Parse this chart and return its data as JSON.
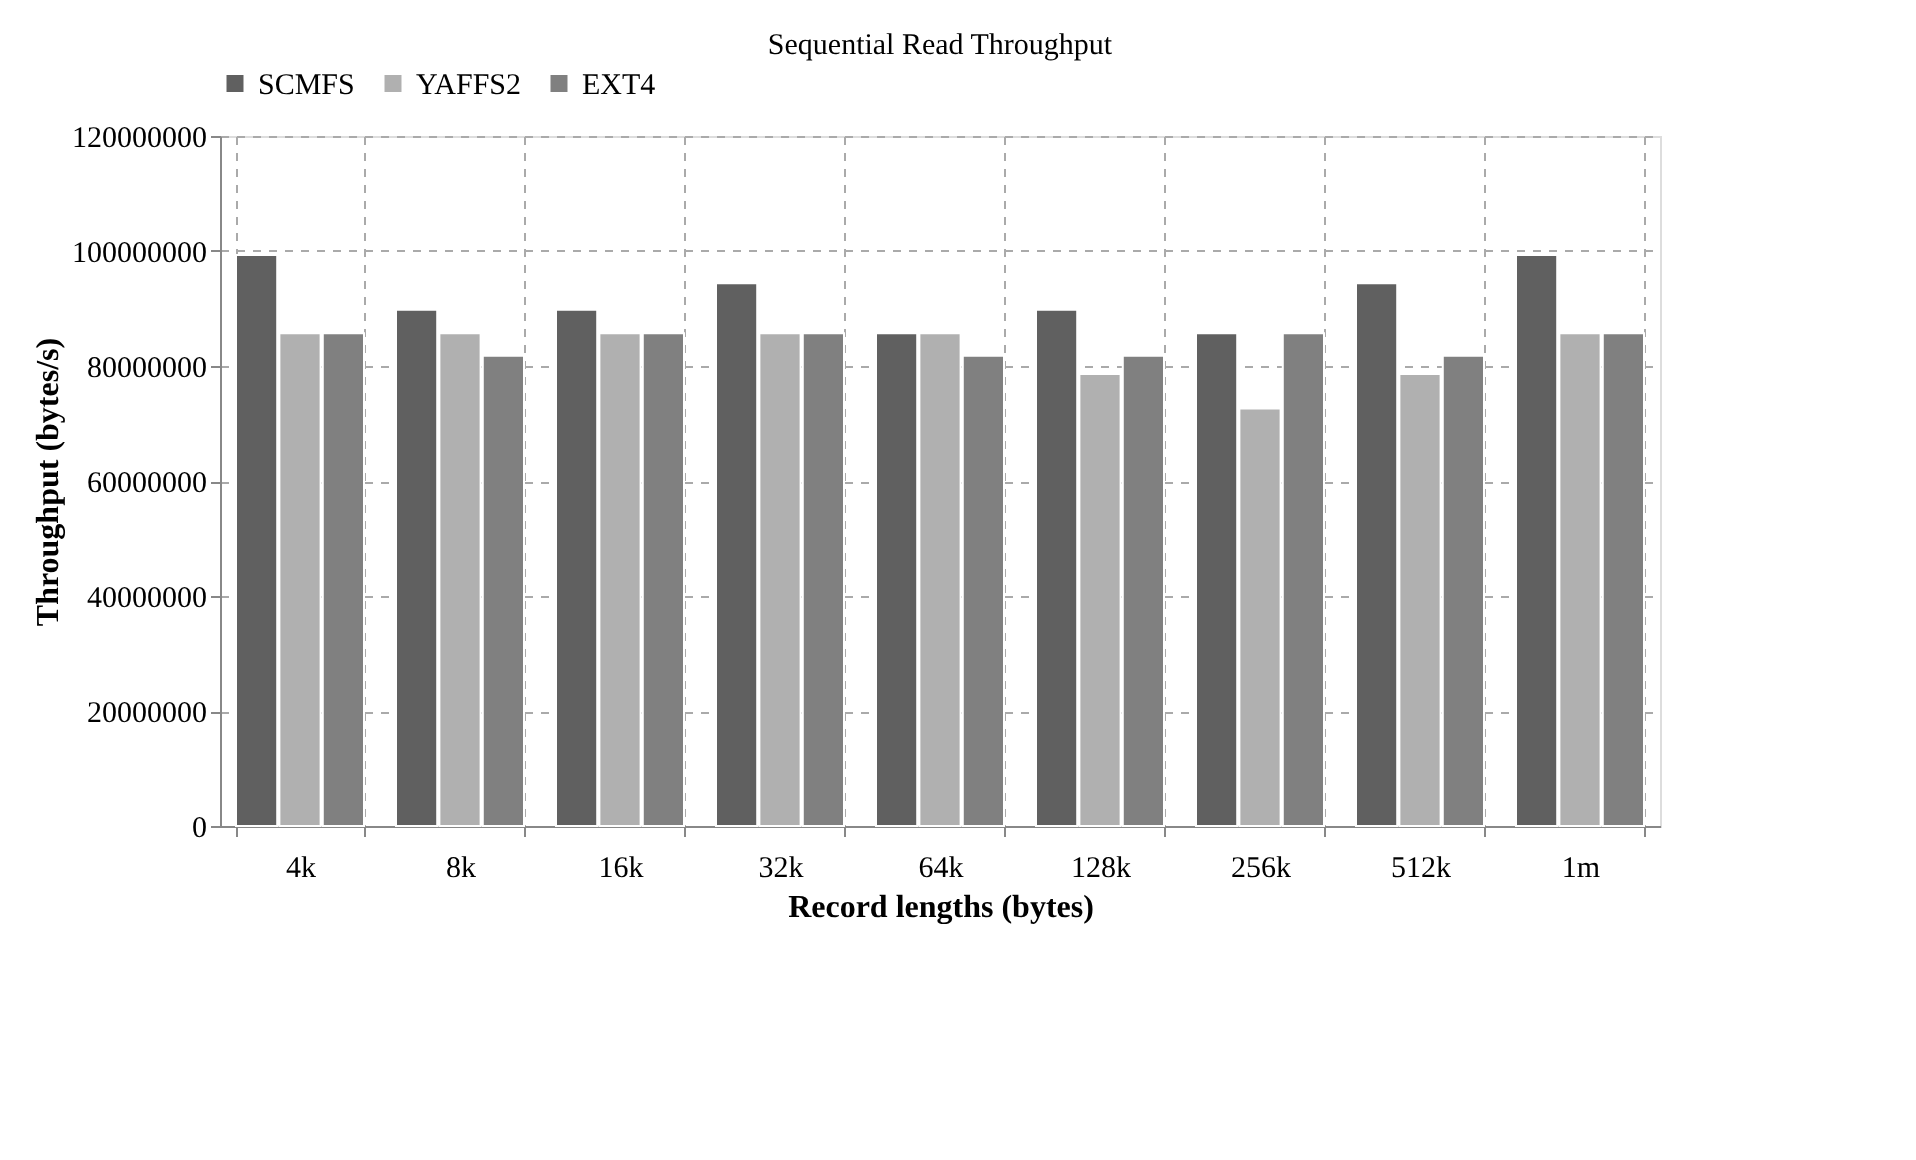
{
  "chart_data": {
    "type": "bar",
    "title": "Sequential Read Throughput",
    "xlabel": "Record lengths (bytes)",
    "ylabel": "Throughput (bytes/s)",
    "categories": [
      "4k",
      "8k",
      "16k",
      "32k",
      "64k",
      "128k",
      "256k",
      "512k",
      "1m"
    ],
    "series": [
      {
        "name": "SCMFS",
        "color": "#606060",
        "values": [
          99300000,
          89800000,
          89800000,
          94400000,
          85700000,
          89800000,
          85700000,
          94400000,
          99300000
        ]
      },
      {
        "name": "YAFFS2",
        "color": "#b0b0b0",
        "values": [
          85700000,
          85700000,
          85700000,
          85700000,
          85700000,
          78600000,
          72600000,
          78600000,
          85700000
        ]
      },
      {
        "name": "EXT4",
        "color": "#808080",
        "values": [
          85700000,
          81800000,
          85700000,
          85700000,
          81800000,
          81800000,
          85700000,
          81800000,
          85700000
        ]
      }
    ],
    "ylim": [
      0,
      120000000
    ],
    "yticks": [
      0,
      20000000,
      40000000,
      60000000,
      80000000,
      100000000,
      120000000
    ],
    "grid": true,
    "legend": "top"
  }
}
